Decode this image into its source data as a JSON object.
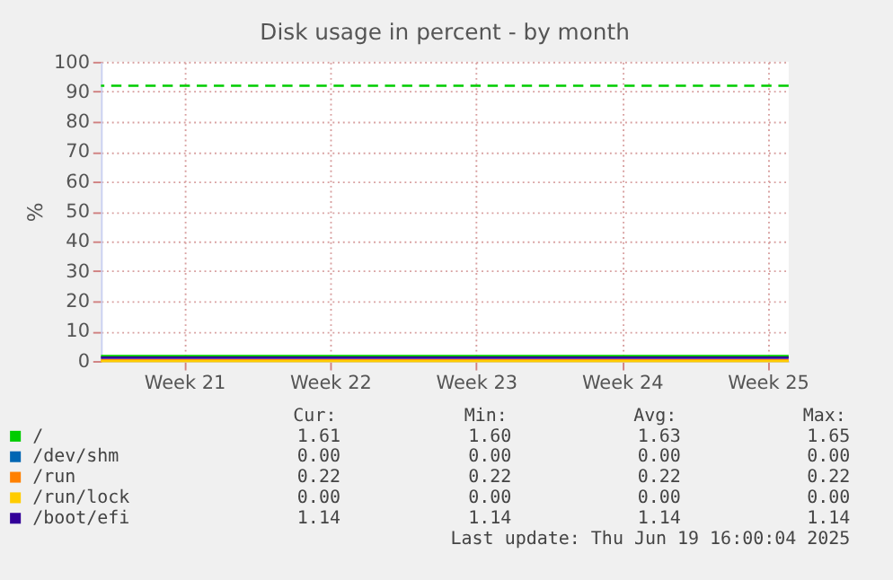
{
  "chart_data": {
    "type": "line",
    "title": "Disk usage in percent - by month",
    "ylabel": "%",
    "x": [
      "2025-05-15",
      "2025-06-17"
    ],
    "xlim": [
      "2025-05-15",
      "2025-06-17"
    ],
    "xticks": [
      {
        "value": "2025-05-19",
        "label": "Week 21"
      },
      {
        "value": "2025-05-26",
        "label": "Week 22"
      },
      {
        "value": "2025-06-02",
        "label": "Week 23"
      },
      {
        "value": "2025-06-09",
        "label": "Week 24"
      },
      {
        "value": "2025-06-16",
        "label": "Week 25"
      }
    ],
    "ylim": [
      0,
      100
    ],
    "yticks": [
      0,
      10,
      20,
      30,
      40,
      50,
      60,
      70,
      80,
      90,
      100
    ],
    "grid": true,
    "legend": "bottom",
    "series": [
      {
        "name": "/",
        "color": "#00cc00",
        "values": [
          1.6,
          1.6
        ]
      },
      {
        "name": "/dev/shm",
        "color": "#0066b3",
        "values": [
          null,
          null
        ]
      },
      {
        "name": "/run",
        "color": "#ff8000",
        "values": [
          0.2,
          0.2
        ]
      },
      {
        "name": "/run/lock",
        "color": "#ffcc00",
        "values": [
          0,
          0
        ]
      },
      {
        "name": "/boot/efi",
        "color": "#330099",
        "values": [
          1.1,
          1.1
        ]
      }
    ],
    "ref_lines": [
      {
        "axis": "y",
        "value": 92,
        "color": "#00cc00",
        "line_style": "dashed"
      }
    ],
    "annotations": [
      "Cur:",
      "Min:",
      "Avg:",
      "Max:",
      "1.61",
      "1.60",
      "1.63",
      "1.65",
      "0.00",
      "0.00",
      "0.00",
      "0.00",
      "0.22",
      "0.22",
      "0.22",
      "0.22",
      "0.00",
      "0.00",
      "0.00",
      "0.00",
      "1.14",
      "1.14",
      "1.14",
      "1.14",
      "Last update: Thu Jun 19 16:00:04 2025"
    ]
  }
}
